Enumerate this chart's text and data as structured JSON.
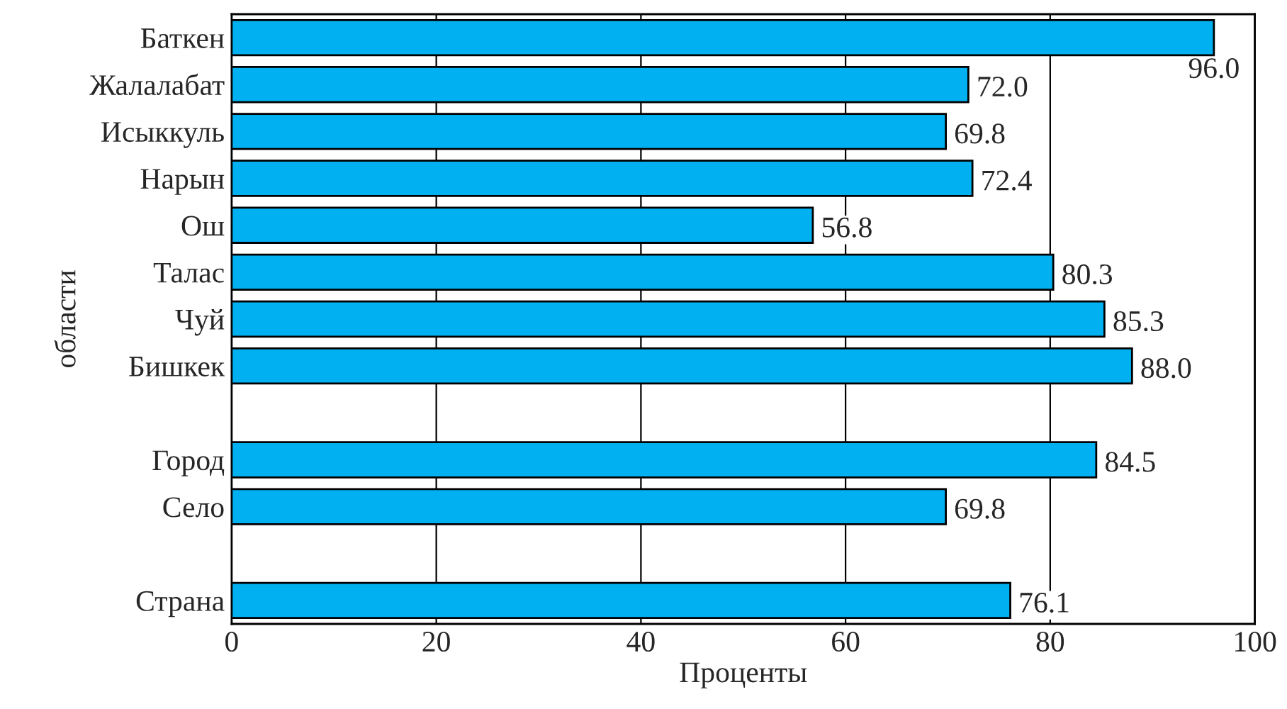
{
  "chart_data": {
    "type": "bar",
    "orientation": "horizontal",
    "xlabel": "Проценты",
    "ylabel": "области",
    "categories": [
      "Баткен",
      "Жалалабат",
      "Исыккуль",
      "Нарын",
      "Ош",
      "Талас",
      "Чуй",
      "Бишкек",
      null,
      "Город",
      "Село",
      null,
      "Страна"
    ],
    "values": [
      96.0,
      72.0,
      69.8,
      72.4,
      56.8,
      80.3,
      85.3,
      88.0,
      null,
      84.5,
      69.8,
      null,
      76.1
    ],
    "value_labels": [
      "96.0",
      "72.0",
      "69.8",
      "72.4",
      "56.8",
      "80.3",
      "85.3",
      "88.0",
      null,
      "84.5",
      "69.8",
      null,
      "76.1"
    ],
    "color": "#00b0f0",
    "xlim": [
      0,
      100
    ],
    "xticks": [
      0,
      20,
      40,
      60,
      80,
      100
    ],
    "grid": "x"
  }
}
